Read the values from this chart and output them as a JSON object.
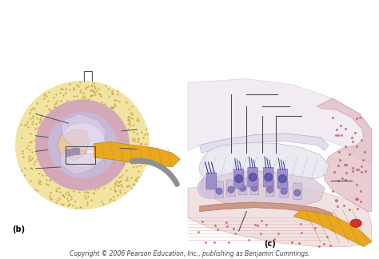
{
  "background_color": "#ffffff",
  "figure_width": 4.74,
  "figure_height": 3.24,
  "dpi": 100,
  "label_b": "(b)",
  "label_c": "(c)",
  "copyright_text": "Copyright © 2006 Pearson Education, Inc., publishing as Benjamin Cummings.",
  "copyright_fontsize": 5.5,
  "label_fontsize": 7,
  "copyright_color": "#444444",
  "label_color": "#000000"
}
